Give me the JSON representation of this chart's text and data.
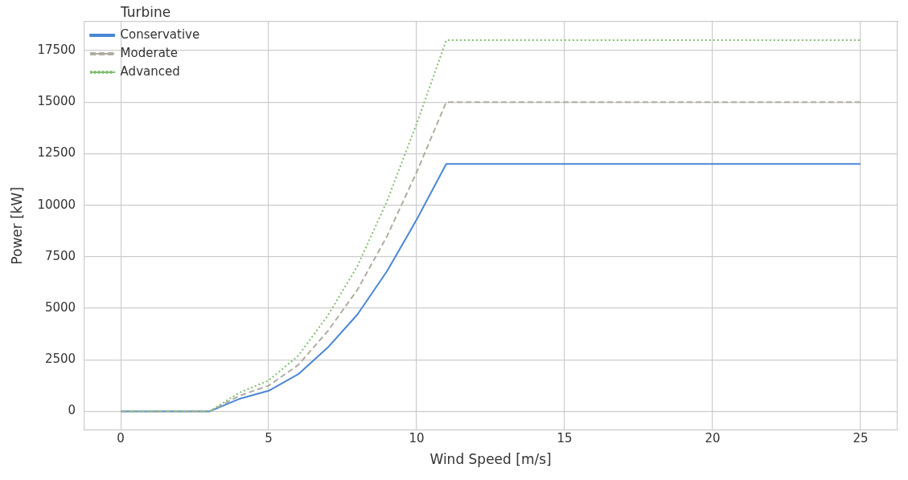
{
  "chart_data": {
    "type": "line",
    "xlabel": "Wind Speed [m/s]",
    "ylabel": "Power [kW]",
    "legend_title": "Turbine",
    "legend": "top left",
    "grid": true,
    "marker": "none",
    "x": [
      0,
      1,
      2,
      3,
      4,
      5,
      6,
      7,
      8,
      9,
      10,
      11,
      12,
      13,
      14,
      15,
      16,
      17,
      18,
      19,
      20,
      21,
      22,
      23,
      24,
      25
    ],
    "xlim": [
      -1.25,
      26.25
    ],
    "xticks": [
      0,
      5,
      10,
      15,
      20,
      25
    ],
    "ylim": [
      -900,
      18900
    ],
    "yticks": [
      0,
      2500,
      5000,
      7500,
      10000,
      12500,
      15000,
      17500
    ],
    "series": [
      {
        "name": "Conservative",
        "color": "#4a86d4",
        "line_style": "solid",
        "values": [
          0,
          0,
          0,
          0,
          600,
          1000,
          1800,
          3100,
          4700,
          6800,
          9300,
          12000,
          12000,
          12000,
          12000,
          12000,
          12000,
          12000,
          12000,
          12000,
          12000,
          12000,
          12000,
          12000,
          12000,
          12000
        ]
      },
      {
        "name": "Moderate",
        "color": "#b0aca0",
        "line_style": "dashed",
        "values": [
          0,
          0,
          0,
          0,
          750,
          1250,
          2250,
          3900,
          5900,
          8500,
          11600,
          15000,
          15000,
          15000,
          15000,
          15000,
          15000,
          15000,
          15000,
          15000,
          15000,
          15000,
          15000,
          15000,
          15000,
          15000
        ]
      },
      {
        "name": "Advanced",
        "color": "#7fbf6f",
        "line_style": "dotted",
        "values": [
          0,
          0,
          0,
          0,
          900,
          1500,
          2700,
          4650,
          7050,
          10200,
          13950,
          18000,
          18000,
          18000,
          18000,
          18000,
          18000,
          18000,
          18000,
          18000,
          18000,
          18000,
          18000,
          18000,
          18000,
          18000
        ]
      }
    ]
  }
}
